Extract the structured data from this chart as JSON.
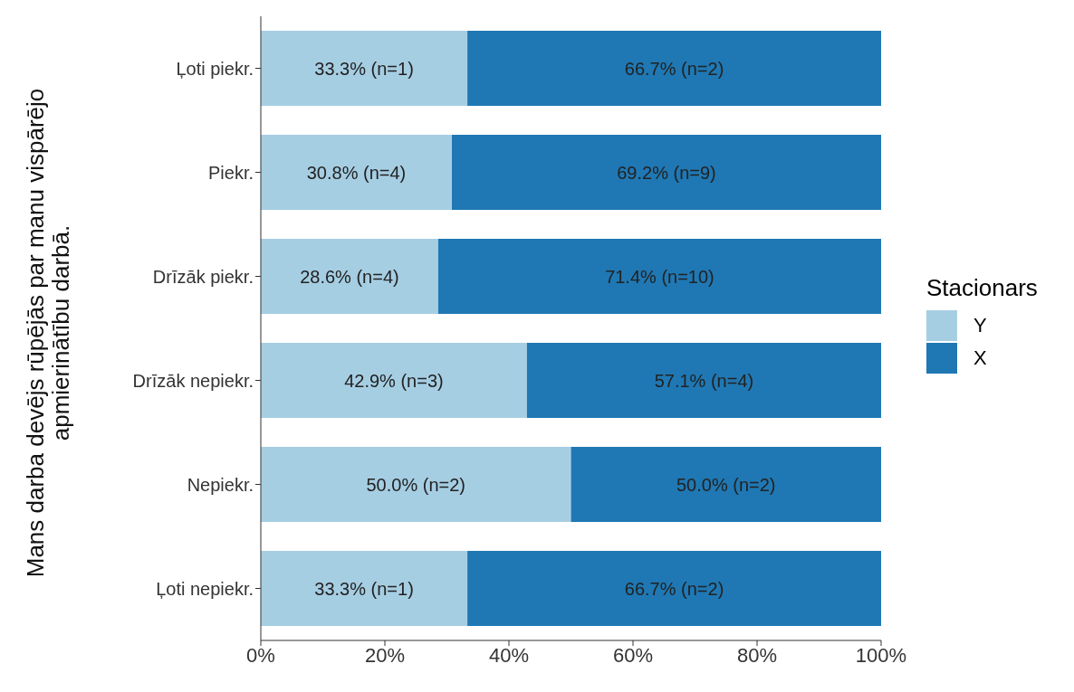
{
  "chart_data": {
    "type": "bar",
    "orientation": "horizontal",
    "stacked": true,
    "ylabel": "Mans darba devējs rūpējās par manu vispārējo apmierinātību darbā.",
    "legend_title": "Stacionars",
    "legend": "right",
    "grid": false,
    "categories": [
      "Ļoti piekr.",
      "Piekr.",
      "Drīzāk piekr.",
      "Drīzāk nepiekr.",
      "Nepiekr.",
      "Ļoti nepiekr."
    ],
    "series": [
      {
        "name": "Y",
        "color": "#a6cee3",
        "values": [
          33.3,
          30.8,
          28.6,
          42.9,
          50.0,
          33.3
        ],
        "value_labels": [
          "33.3% (n=1)",
          "30.8% (n=4)",
          "28.6% (n=4)",
          "42.9% (n=3)",
          "50.0% (n=2)",
          "33.3% (n=1)"
        ]
      },
      {
        "name": "X",
        "color": "#1f78b4",
        "values": [
          66.7,
          69.2,
          71.4,
          57.1,
          50.0,
          66.7
        ],
        "value_labels": [
          "66.7% (n=2)",
          "69.2% (n=9)",
          "71.4% (n=10)",
          "57.1% (n=4)",
          "50.0% (n=2)",
          "66.7% (n=2)"
        ]
      }
    ],
    "xlim": [
      0,
      100
    ],
    "xticks": [
      {
        "value": 0,
        "label": "0%"
      },
      {
        "value": 20,
        "label": "20%"
      },
      {
        "value": 40,
        "label": "40%"
      },
      {
        "value": 60,
        "label": "60%"
      },
      {
        "value": 80,
        "label": "80%"
      },
      {
        "value": 100,
        "label": "100%"
      }
    ]
  }
}
